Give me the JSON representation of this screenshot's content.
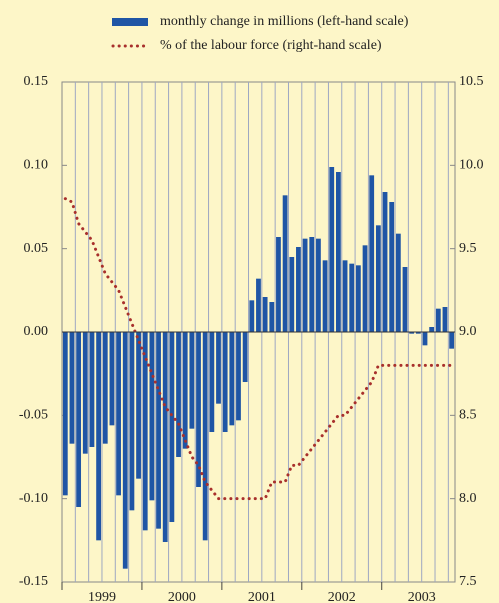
{
  "chart_data": {
    "type": "bar_line",
    "categories": [
      null,
      null,
      null,
      null,
      null,
      "1999",
      null,
      null,
      null,
      null,
      null,
      null,
      null,
      null,
      null,
      null,
      null,
      "2000",
      null,
      null,
      null,
      null,
      null,
      null,
      null,
      null,
      null,
      null,
      null,
      "2001",
      null,
      null,
      null,
      null,
      null,
      null,
      null,
      null,
      null,
      null,
      null,
      "2002",
      null,
      null,
      null,
      null,
      null,
      null,
      null,
      null,
      null,
      null,
      null,
      "2003",
      null,
      null,
      null,
      null,
      null
    ],
    "series": [
      {
        "name": "monthly change in millions (left-hand scale)",
        "type": "bar",
        "axis": "y",
        "color": "#1f55a5",
        "values": [
          -0.098,
          -0.067,
          -0.105,
          -0.073,
          -0.069,
          -0.125,
          -0.067,
          -0.056,
          -0.098,
          -0.142,
          -0.107,
          -0.088,
          -0.119,
          -0.101,
          -0.118,
          -0.126,
          -0.114,
          -0.075,
          -0.07,
          -0.058,
          -0.093,
          -0.125,
          -0.06,
          -0.043,
          -0.06,
          -0.056,
          -0.053,
          -0.03,
          0.019,
          0.032,
          0.021,
          0.018,
          0.057,
          0.082,
          0.045,
          0.051,
          0.056,
          0.057,
          0.056,
          0.043,
          0.099,
          0.096,
          0.043,
          0.041,
          0.04,
          0.052,
          0.094,
          0.064,
          0.084,
          0.078,
          0.059,
          0.039,
          -0.001,
          -0.001,
          -0.008,
          0.003,
          0.014,
          0.015,
          -0.01
        ]
      },
      {
        "name": "% of the labour force (right-hand scale)",
        "type": "line",
        "axis": "y2",
        "color": "#a8302c",
        "values": [
          9.8,
          9.78,
          9.65,
          9.6,
          9.55,
          9.45,
          9.35,
          9.3,
          9.25,
          9.15,
          9.05,
          8.95,
          8.85,
          8.75,
          8.65,
          8.55,
          8.5,
          8.45,
          8.35,
          8.25,
          8.2,
          8.1,
          8.05,
          8.0,
          8.0,
          8.0,
          8.0,
          8.0,
          8.0,
          8.0,
          8.0,
          8.1,
          8.1,
          8.1,
          8.2,
          8.2,
          8.25,
          8.3,
          8.35,
          8.4,
          8.45,
          8.5,
          8.5,
          8.55,
          8.6,
          8.65,
          8.7,
          8.8,
          8.8,
          8.8,
          8.8,
          8.8,
          8.8,
          8.8,
          8.8,
          8.8,
          8.8,
          8.8,
          8.8
        ]
      }
    ],
    "ylim": [
      -0.15,
      0.15
    ],
    "yticks": [
      -0.15,
      {
        "value": -0.1,
        "label": "-0.10"
      },
      -0.05,
      {
        "value": 0,
        "label": "0.00"
      },
      0.05,
      {
        "value": 0.1,
        "label": "0.10"
      },
      0.15
    ],
    "y2lim": [
      7.5,
      10.5
    ],
    "y2ticks": [
      7.5,
      {
        "value": 8,
        "label": "8.0"
      },
      8.5,
      {
        "value": 9,
        "label": "9.0"
      },
      9.5,
      {
        "value": 10,
        "label": "10.0"
      },
      10.5
    ],
    "grid": true
  }
}
